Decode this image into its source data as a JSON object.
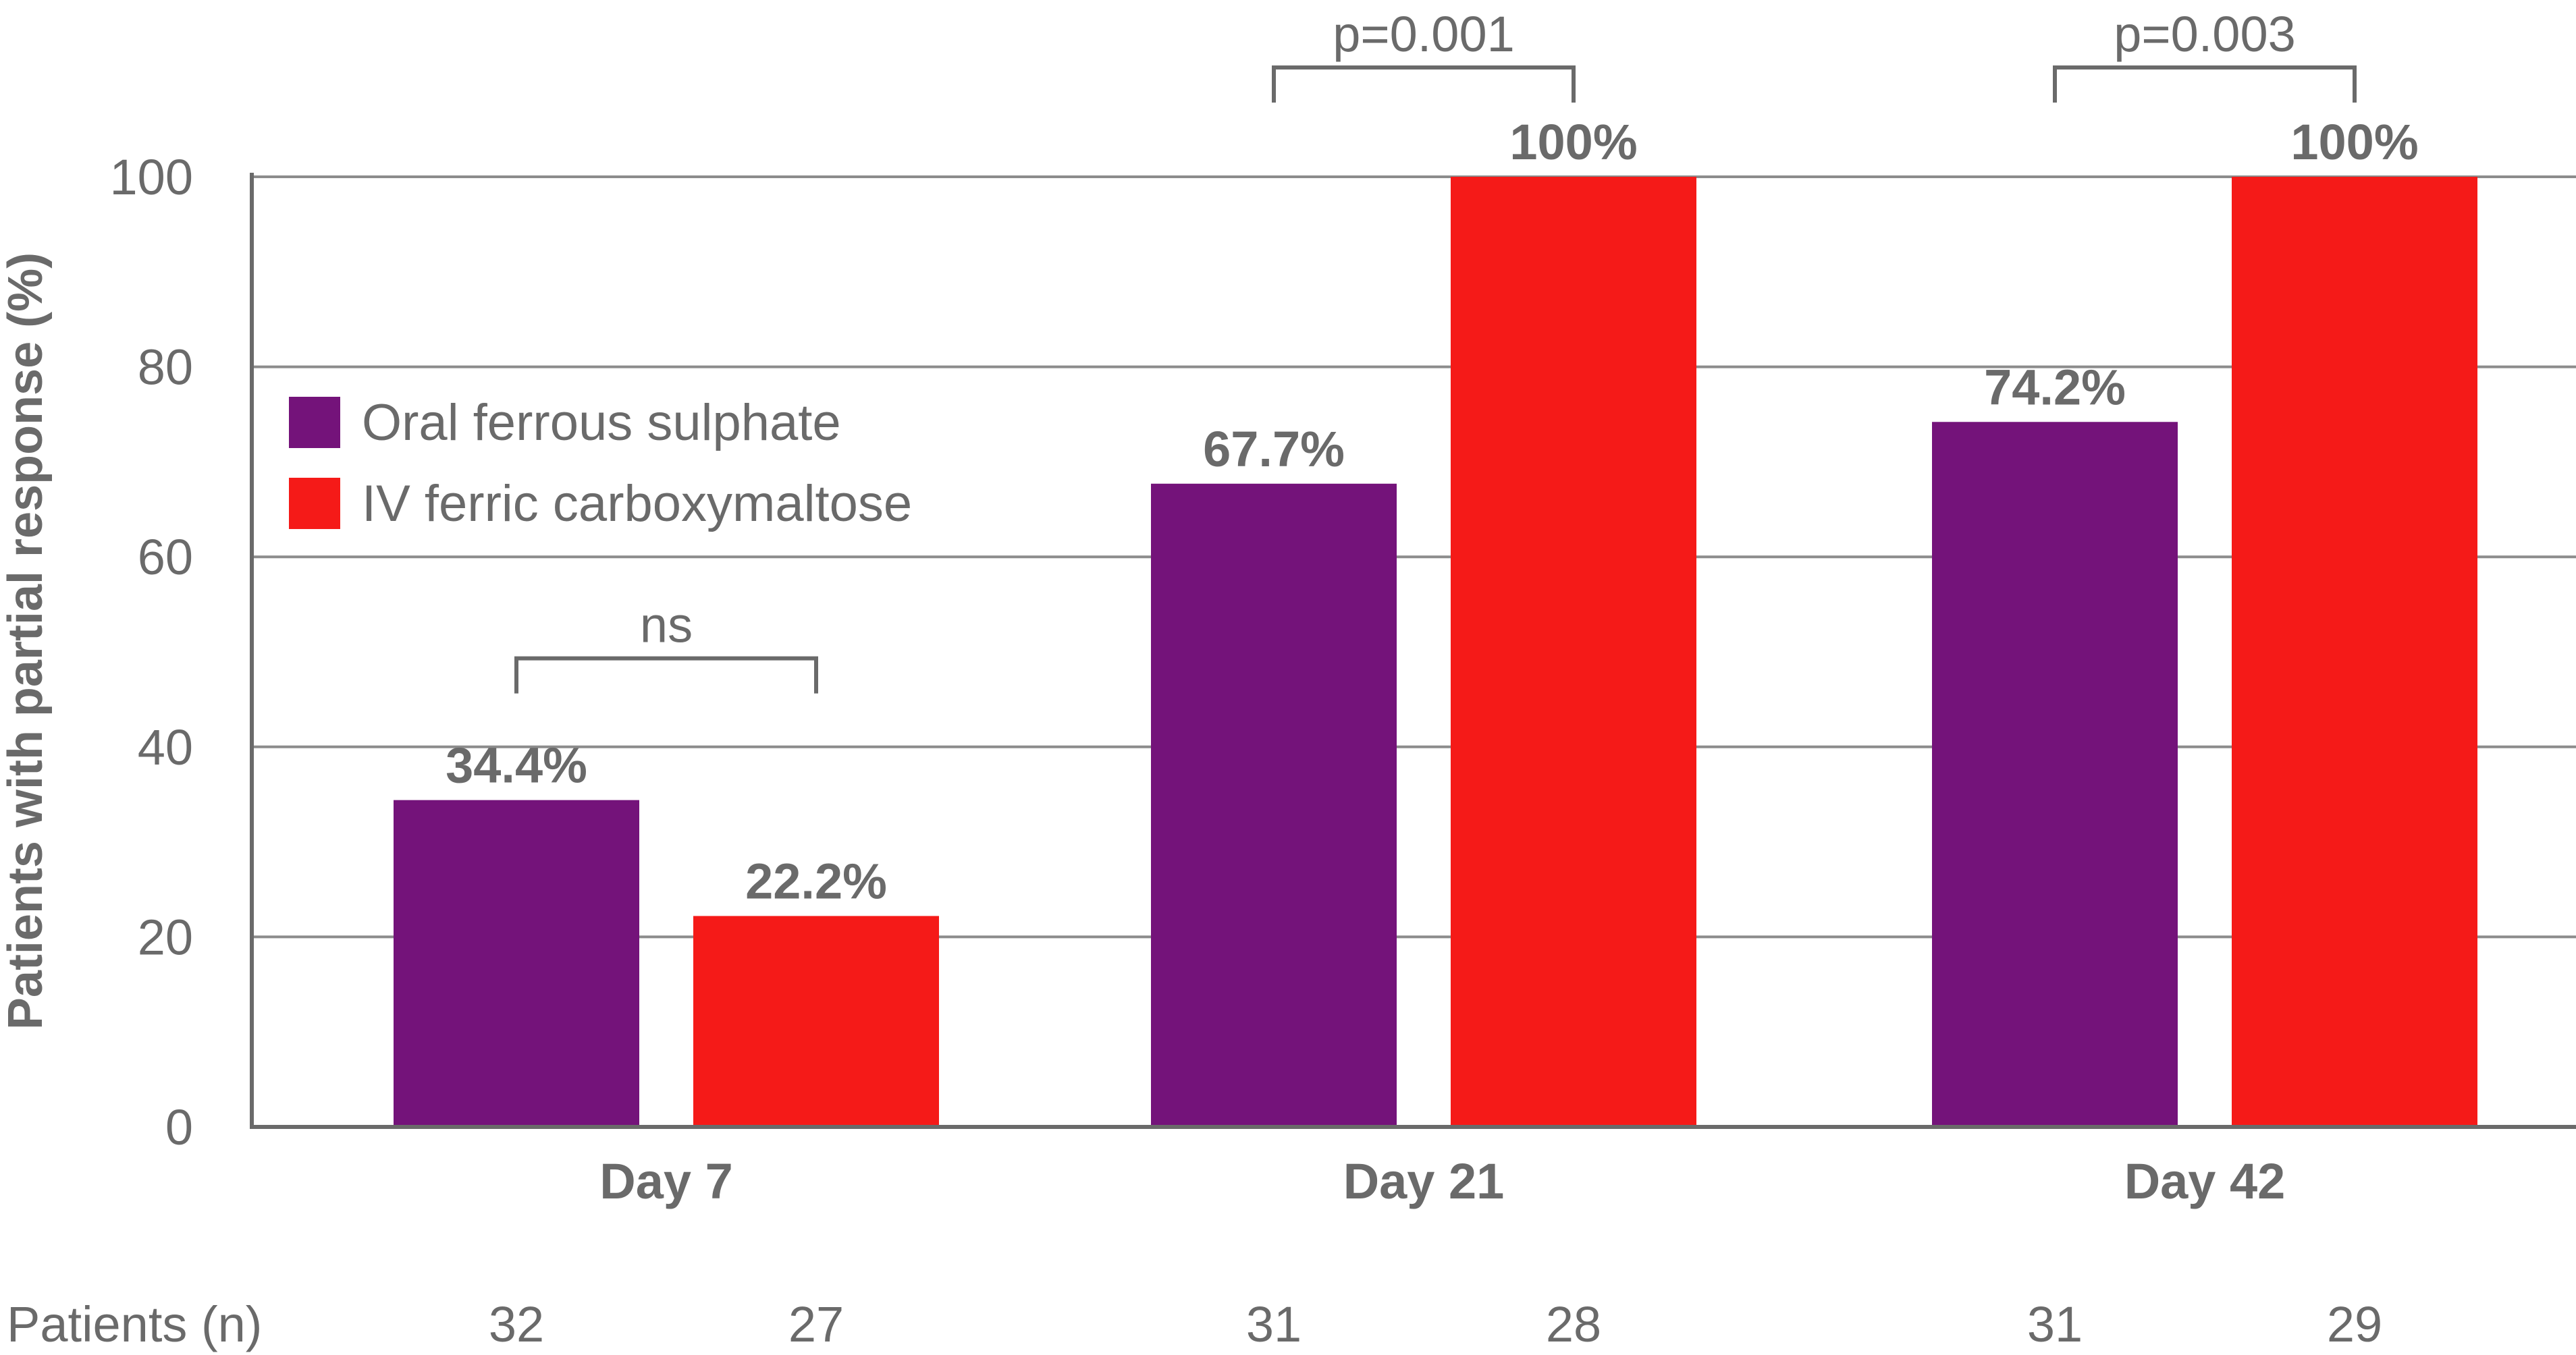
{
  "chart_data": {
    "type": "bar",
    "title": "",
    "ylabel": "Patients with partial response (%)",
    "xlabel": "",
    "ylim": [
      0,
      100
    ],
    "yticks": [
      0,
      20,
      40,
      60,
      80,
      100
    ],
    "grid": true,
    "legend_placement": "top-left",
    "categories": [
      "Day 7",
      "Day 21",
      "Day 42"
    ],
    "series": [
      {
        "name": "Oral ferrous sulphate",
        "color": "#74137a",
        "values": [
          34.4,
          67.7,
          74.2
        ],
        "labels": [
          "34.4%",
          "67.7%",
          "74.2%"
        ],
        "n": [
          "32",
          "31",
          "31"
        ]
      },
      {
        "name": "IV ferric carboxymaltose",
        "color": "#f51a18",
        "values": [
          22.2,
          100,
          100
        ],
        "labels": [
          "22.2%",
          "100%",
          "100%"
        ],
        "n": [
          "27",
          "28",
          "29"
        ]
      }
    ],
    "comparisons": [
      "ns",
      "p=0.001",
      "p=0.003"
    ],
    "n_row_label": "Patients (n)"
  }
}
